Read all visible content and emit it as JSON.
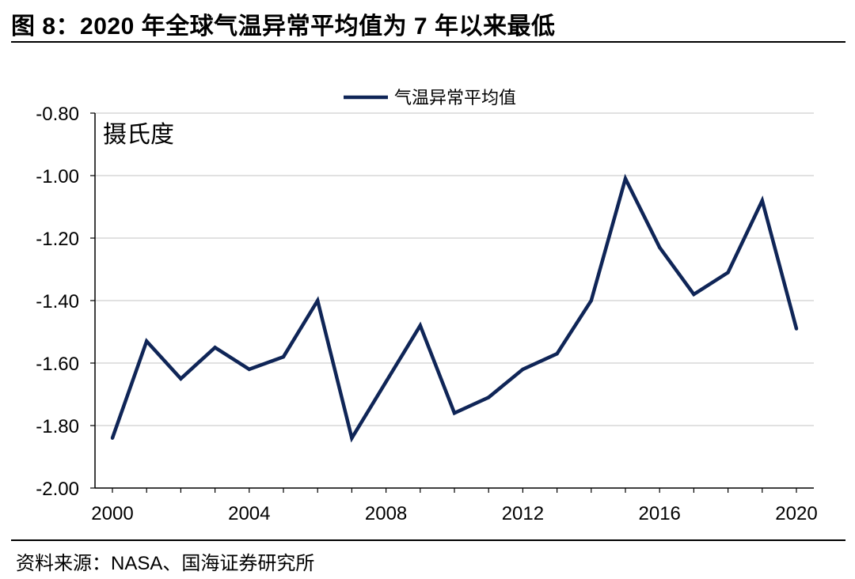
{
  "figure": {
    "title": "图 8：2020 年全球气温异常平均值为 7 年以来最低",
    "source": "资料来源：NASA、国海证券研究所"
  },
  "chart_data": {
    "type": "line",
    "unit_label": "摄氏度",
    "x": [
      2000,
      2001,
      2002,
      2003,
      2004,
      2005,
      2006,
      2007,
      2008,
      2009,
      2010,
      2011,
      2012,
      2013,
      2014,
      2015,
      2016,
      2017,
      2018,
      2019,
      2020
    ],
    "series": [
      {
        "name": "气温异常平均值",
        "color": "#0f2557",
        "values": [
          -1.84,
          -1.53,
          -1.65,
          -1.55,
          -1.62,
          -1.58,
          -1.4,
          -1.84,
          -1.66,
          -1.48,
          -1.76,
          -1.71,
          -1.62,
          -1.57,
          -1.4,
          -1.01,
          -1.23,
          -1.38,
          -1.31,
          -1.08,
          -1.49
        ]
      }
    ],
    "xticks": [
      2000,
      2004,
      2008,
      2012,
      2016,
      2020
    ],
    "yticks": [
      -0.8,
      -1.0,
      -1.2,
      -1.4,
      -1.6,
      -1.8,
      -2.0
    ],
    "ylim": [
      -2.0,
      -0.8
    ],
    "xlim": [
      2000,
      2020
    ],
    "grid": "y-only",
    "legend_position": "top"
  }
}
